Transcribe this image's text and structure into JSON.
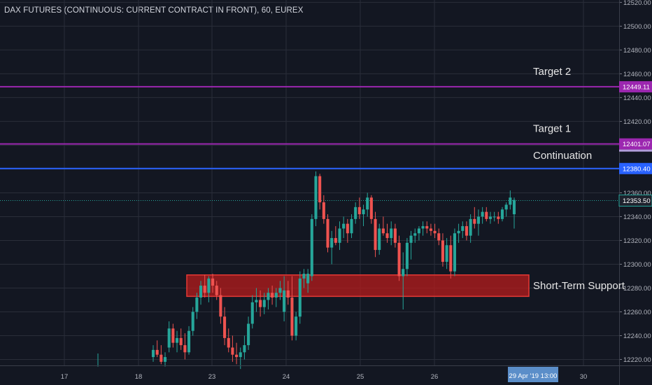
{
  "title": "DAX FUTURES (CONTINUOUS: CURRENT CONTRACT IN FRONT), 60, EUREX",
  "colors": {
    "background": "#131722",
    "grid": "#2a2e39",
    "up": "#26a69a",
    "down": "#ef5350",
    "purple_line": "#9c27b0",
    "blue_line": "#2962ff",
    "support_zone": "#b71c1c",
    "current_price_line": "#26a69a",
    "crosshair_label": "#5b8ec9"
  },
  "chart_data": {
    "type": "candlestick",
    "y_axis": {
      "min": 12215,
      "max": 12522,
      "ticks": [
        "12220.00",
        "12240.00",
        "12260.00",
        "12280.00",
        "12300.00",
        "12320.00",
        "12340.00",
        "12360.00",
        "12380.00",
        "12400.00",
        "12420.00",
        "12440.00",
        "12460.00",
        "12480.00",
        "12500.00",
        "12520.00"
      ]
    },
    "x_axis": {
      "labels": [
        "17",
        "18",
        "23",
        "24",
        "25",
        "26",
        "30"
      ],
      "crosshair_label": "29 Apr '19   13:00"
    },
    "horizontal_lines": [
      {
        "label": "Target 2",
        "price": 12449.11,
        "price_label": "12449.11",
        "color": "purple"
      },
      {
        "label": "Target 1",
        "price": 12401.07,
        "price_label": "12401.07",
        "color": "purple"
      },
      {
        "label": "Continuation",
        "price": 12380.4,
        "price_label": "12380.40",
        "color": "blue"
      }
    ],
    "current_price": {
      "price": 12353.5,
      "label": "12353.50"
    },
    "zone": {
      "label": "Short-Term Support",
      "top": 12291,
      "bottom": 12273
    },
    "candles": [
      [
        12222,
        12232,
        12218,
        12228
      ],
      [
        12228,
        12236,
        12222,
        12224
      ],
      [
        12224,
        12232,
        12216,
        12218
      ],
      [
        12218,
        12226,
        12214,
        12222
      ],
      [
        12230,
        12252,
        12226,
        12246
      ],
      [
        12246,
        12250,
        12230,
        12234
      ],
      [
        12234,
        12244,
        12226,
        12238
      ],
      [
        12238,
        12246,
        12228,
        12232
      ],
      [
        12232,
        12242,
        12220,
        12226
      ],
      [
        12226,
        12248,
        12224,
        12244
      ],
      [
        12244,
        12264,
        12240,
        12260
      ],
      [
        12260,
        12276,
        12254,
        12272
      ],
      [
        12272,
        12286,
        12266,
        12282
      ],
      [
        12282,
        12291,
        12272,
        12276
      ],
      [
        12276,
        12290,
        12268,
        12288
      ],
      [
        12288,
        12292,
        12276,
        12282
      ],
      [
        12282,
        12286,
        12270,
        12274
      ],
      [
        12274,
        12280,
        12250,
        12256
      ],
      [
        12256,
        12264,
        12232,
        12238
      ],
      [
        12238,
        12246,
        12226,
        12230
      ],
      [
        12230,
        12240,
        12218,
        12224
      ],
      [
        12224,
        12234,
        12216,
        12222
      ],
      [
        12222,
        12230,
        12212,
        12226
      ],
      [
        12226,
        12240,
        12220,
        12232
      ],
      [
        12232,
        12256,
        12228,
        12250
      ],
      [
        12250,
        12274,
        12246,
        12268
      ],
      [
        12268,
        12280,
        12260,
        12270
      ],
      [
        12270,
        12278,
        12256,
        12264
      ],
      [
        12264,
        12276,
        12258,
        12270
      ],
      [
        12270,
        12280,
        12262,
        12276
      ],
      [
        12276,
        12282,
        12266,
        12272
      ],
      [
        12272,
        12280,
        12264,
        12276
      ],
      [
        12276,
        12286,
        12270,
        12280
      ],
      [
        12260,
        12290,
        12252,
        12278
      ],
      [
        12278,
        12286,
        12266,
        12272
      ],
      [
        12272,
        12290,
        12236,
        12240
      ],
      [
        12240,
        12260,
        12236,
        12256
      ],
      [
        12256,
        12294,
        12250,
        12288
      ],
      [
        12288,
        12296,
        12280,
        12292
      ],
      [
        12284,
        12296,
        12276,
        12292
      ],
      [
        12290,
        12342,
        12286,
        12338
      ],
      [
        12338,
        12378,
        12332,
        12374
      ],
      [
        12374,
        12376,
        12346,
        12352
      ],
      [
        12352,
        12358,
        12334,
        12338
      ],
      [
        12338,
        12342,
        12310,
        12314
      ],
      [
        12314,
        12328,
        12300,
        12322
      ],
      [
        12322,
        12332,
        12316,
        12318
      ],
      [
        12318,
        12336,
        12312,
        12330
      ],
      [
        12330,
        12340,
        12322,
        12334
      ],
      [
        12334,
        12338,
        12318,
        12326
      ],
      [
        12326,
        12342,
        12322,
        12338
      ],
      [
        12338,
        12352,
        12334,
        12348
      ],
      [
        12348,
        12356,
        12338,
        12342
      ],
      [
        12342,
        12350,
        12332,
        12346
      ],
      [
        12346,
        12360,
        12340,
        12356
      ],
      [
        12356,
        12358,
        12334,
        12338
      ],
      [
        12338,
        12344,
        12306,
        12312
      ],
      [
        12312,
        12334,
        12308,
        12330
      ],
      [
        12330,
        12340,
        12324,
        12326
      ],
      [
        12326,
        12334,
        12318,
        12322
      ],
      [
        12322,
        12336,
        12316,
        12330
      ],
      [
        12330,
        12334,
        12314,
        12318
      ],
      [
        12318,
        12324,
        12286,
        12290
      ],
      [
        12290,
        12310,
        12262,
        12296
      ],
      [
        12296,
        12322,
        12290,
        12318
      ],
      [
        12318,
        12328,
        12304,
        12324
      ],
      [
        12324,
        12330,
        12318,
        12326
      ],
      [
        12326,
        12332,
        12320,
        12330
      ],
      [
        12330,
        12336,
        12324,
        12332
      ],
      [
        12332,
        12336,
        12326,
        12330
      ],
      [
        12330,
        12334,
        12324,
        12328
      ],
      [
        12328,
        12334,
        12322,
        12326
      ],
      [
        12326,
        12330,
        12316,
        12320
      ],
      [
        12320,
        12326,
        12298,
        12302
      ],
      [
        12302,
        12322,
        12296,
        12316
      ],
      [
        12316,
        12324,
        12288,
        12294
      ],
      [
        12294,
        12330,
        12290,
        12326
      ],
      [
        12326,
        12334,
        12318,
        12328
      ],
      [
        12328,
        12336,
        12322,
        12332
      ],
      [
        12332,
        12336,
        12320,
        12324
      ],
      [
        12324,
        12342,
        12318,
        12338
      ],
      [
        12338,
        12348,
        12330,
        12334
      ],
      [
        12334,
        12346,
        12324,
        12340
      ],
      [
        12340,
        12348,
        12334,
        12344
      ],
      [
        12344,
        12348,
        12336,
        12338
      ],
      [
        12338,
        12344,
        12334,
        12340
      ],
      [
        12340,
        12344,
        12336,
        12340
      ],
      [
        12340,
        12344,
        12334,
        12338
      ],
      [
        12338,
        12348,
        12336,
        12346
      ],
      [
        12346,
        12352,
        12340,
        12350
      ],
      [
        12350,
        12362,
        12346,
        12356
      ],
      [
        12342,
        12356,
        12330,
        12354
      ]
    ]
  }
}
